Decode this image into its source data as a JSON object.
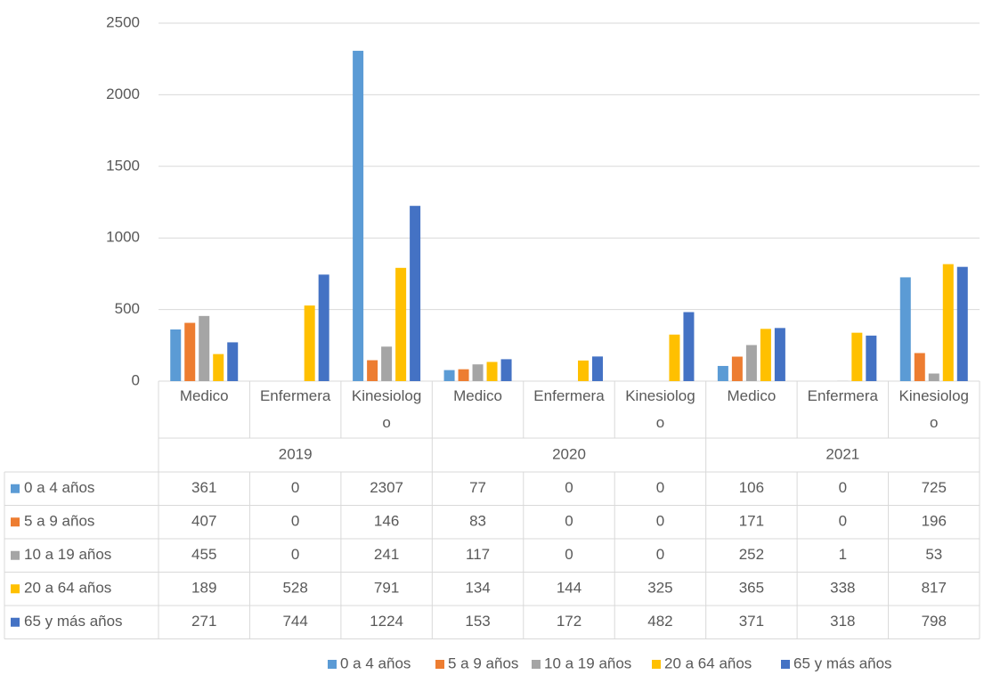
{
  "chart_data": {
    "type": "bar",
    "groups": [
      "2019",
      "2020",
      "2021"
    ],
    "categories": [
      "Medico",
      "Enfermera",
      "Kinesiologo",
      "Medico",
      "Enfermera",
      "Kinesiologo",
      "Medico",
      "Enfermera",
      "Kinesiologo"
    ],
    "series": [
      {
        "name": "0 a 4 años",
        "color": "#5b9bd5",
        "values": [
          361,
          0,
          2307,
          77,
          0,
          0,
          106,
          0,
          725
        ]
      },
      {
        "name": "5 a 9 años",
        "color": "#ed7d31",
        "values": [
          407,
          0,
          146,
          83,
          0,
          0,
          171,
          0,
          196
        ]
      },
      {
        "name": "10 a 19 años",
        "color": "#a5a5a5",
        "values": [
          455,
          0,
          241,
          117,
          0,
          0,
          252,
          1,
          53
        ]
      },
      {
        "name": "20 a 64 años",
        "color": "#ffc000",
        "values": [
          189,
          528,
          791,
          134,
          144,
          325,
          365,
          338,
          817
        ]
      },
      {
        "name": "65 y más años",
        "color": "#4472c4",
        "values": [
          271,
          744,
          1224,
          153,
          172,
          482,
          371,
          318,
          798
        ]
      }
    ],
    "ylim": [
      0,
      2500
    ],
    "yticks": [
      0,
      500,
      1000,
      1500,
      2000,
      2500
    ],
    "grid": true,
    "legend": "bottom",
    "data_table": true
  }
}
